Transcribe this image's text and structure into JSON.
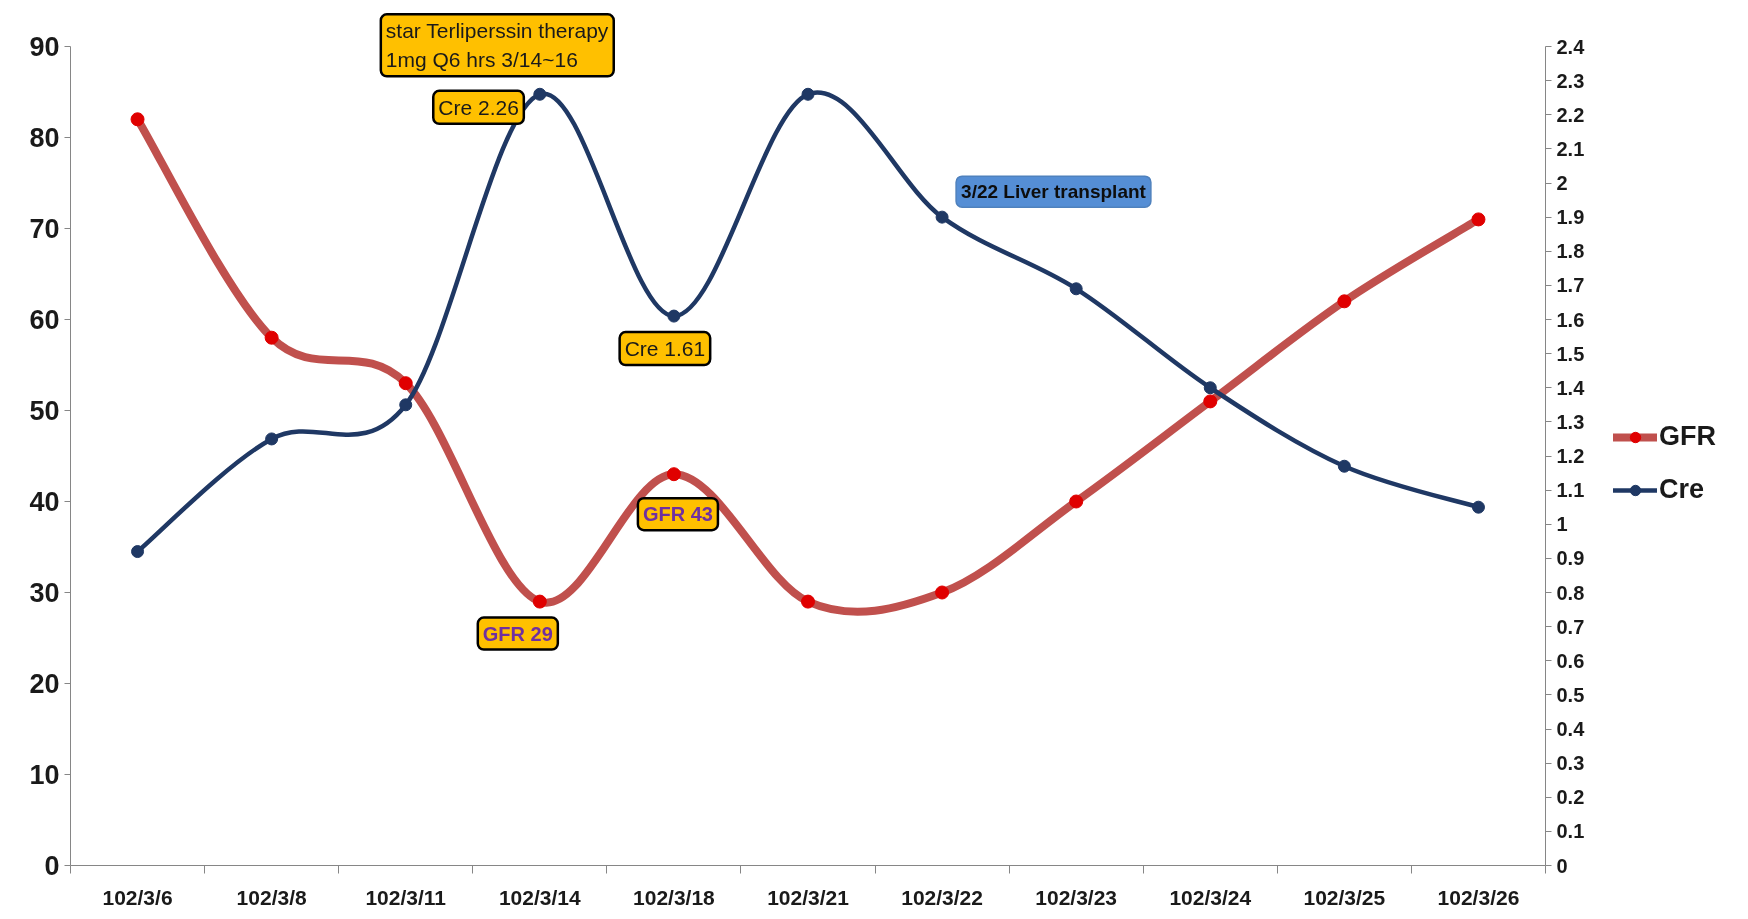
{
  "chart_data": {
    "type": "line",
    "categories": [
      "102/3/6",
      "102/3/8",
      "102/3/11",
      "102/3/14",
      "102/3/18",
      "102/3/21",
      "102/3/22",
      "102/3/23",
      "102/3/24",
      "102/3/25",
      "102/3/26"
    ],
    "series": [
      {
        "name": "GFR",
        "color": "#c0504d",
        "colors": [
          "#e00000",
          "#e00000",
          "#e00000",
          "#e00000",
          "#e00000",
          "#e00000",
          "#e00000",
          "#e00000",
          "#e00000",
          "#e00000",
          "#e00000"
        ],
        "values": [
          82,
          58,
          53,
          29,
          43,
          29,
          30,
          40,
          51,
          62,
          71
        ]
      },
      {
        "name": "Cre",
        "color": "#1f3864",
        "axis": "y2",
        "values": [
          0.92,
          1.25,
          1.35,
          2.26,
          1.61,
          2.26,
          1.9,
          1.69,
          1.4,
          1.17,
          1.05
        ]
      }
    ],
    "ylim": [
      0,
      90
    ],
    "yticks": [
      0,
      10,
      20,
      30,
      40,
      50,
      60,
      70,
      80,
      90
    ],
    "y2lim": [
      0,
      2.4
    ],
    "y2ticks": [
      0,
      0.1,
      0.2,
      0.3,
      0.4,
      0.5,
      0.6,
      0.7,
      0.8,
      0.9,
      1,
      1.1,
      1.2,
      1.3,
      1.4,
      1.5,
      1.6,
      1.7,
      1.8,
      1.9,
      2,
      2.1,
      2.2,
      2.3,
      2.4
    ],
    "legend": "right",
    "marker": "circle",
    "line_style": "solid",
    "annotations": [
      "star Terliperssin therapy 1mg Q6 hrs 3/14~16",
      "Cre 2.26",
      {
        "text": "GFR 29",
        "x": "102/3/14",
        "y": 29
      },
      "Cre 1.61",
      {
        "text": "GFR 43",
        "x": "102/3/18",
        "y": 43
      },
      "3/22 Liver transplant"
    ]
  }
}
